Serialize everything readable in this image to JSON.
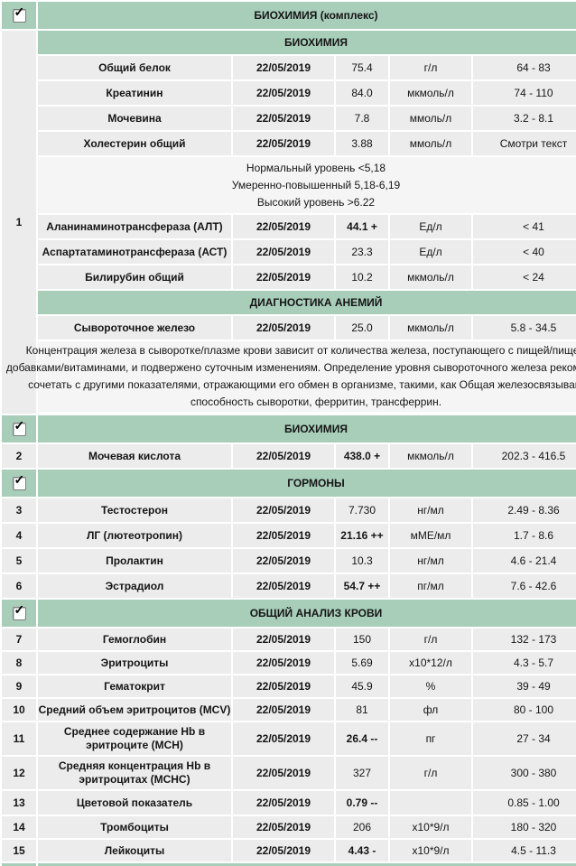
{
  "icons": {
    "check": "✓"
  },
  "colors": {
    "section_green": "#a8ceba",
    "row_gray": "#ececec",
    "block_gray": "#f5f5f5"
  },
  "date_column_value": "22/05/2019",
  "groups": [
    {
      "number": "1",
      "title": "БИОХИМИЯ (комплекс)",
      "checked": true,
      "subheader1": "БИОХИМИЯ",
      "subheader2": "ДИАГНОСТИКА АНЕМИЙ",
      "rows": [
        {
          "name": "Общий белок",
          "date": "22/05/2019",
          "value": "75.4",
          "units": "г/л",
          "range": "64 - 83"
        },
        {
          "name": "Креатинин",
          "date": "22/05/2019",
          "value": "84.0",
          "units": "мкмоль/л",
          "range": "74 - 110"
        },
        {
          "name": "Мочевина",
          "date": "22/05/2019",
          "value": "7.8",
          "units": "ммоль/л",
          "range": "3.2 - 8.1"
        },
        {
          "name": "Холестерин общий",
          "date": "22/05/2019",
          "value": "3.88",
          "units": "ммоль/л",
          "range": "Смотри текст"
        },
        {
          "name": "Аланинаминотрансфераза (АЛТ)",
          "date": "22/05/2019",
          "value": "44.1 +",
          "units": "Ед/л",
          "range": "< 41"
        },
        {
          "name": "Аспартатаминотрансфераза (АСТ)",
          "date": "22/05/2019",
          "value": "23.3",
          "units": "Ед/л",
          "range": "< 40"
        },
        {
          "name": "Билирубин общий",
          "date": "22/05/2019",
          "value": "10.2",
          "units": "мкмоль/л",
          "range": "< 24"
        },
        {
          "name": "Сывороточное железо",
          "date": "22/05/2019",
          "value": "25.0",
          "units": "мкмоль/л",
          "range": "5.8 - 34.5"
        }
      ],
      "cholesterol_note_lines": [
        "Нормальный уровень <5,18",
        "Умеренно-повышенный 5,18-6,19",
        "Высокий уровень >6.22"
      ],
      "iron_note_lines": [
        "Концентрация железа в сыворотке/плазме крови зависит от количества железа, поступающего с пищей/пищевыми",
        "добавками/витаминами, и подвержено суточным изменениям. Определение уровня сывороточного железа рекомендуется",
        "сочетать с другими показателями, отражающими его обмен в организме, такими, как Общая железосвязывающая",
        "способность сыворотки, ферритин, трансферрин."
      ]
    },
    {
      "title": "БИОХИМИЯ",
      "checked": true,
      "rows": [
        {
          "num": "2",
          "name": "Мочевая кислота",
          "date": "22/05/2019",
          "value": "438.0 +",
          "units": "мкмоль/л",
          "range": "202.3 - 416.5"
        }
      ]
    },
    {
      "title": "ГОРМОНЫ",
      "checked": true,
      "rows": [
        {
          "num": "3",
          "name": "Тестостерон",
          "date": "22/05/2019",
          "value": "7.730",
          "units": "нг/мл",
          "range": "2.49 - 8.36"
        },
        {
          "num": "4",
          "name": "ЛГ (лютеотропин)",
          "date": "22/05/2019",
          "value": "21.16 ++",
          "units": "мМЕ/мл",
          "range": "1.7 - 8.6"
        },
        {
          "num": "5",
          "name": "Пролактин",
          "date": "22/05/2019",
          "value": "10.3",
          "units": "нг/мл",
          "range": "4.6 - 21.4"
        },
        {
          "num": "6",
          "name": "Эстрадиол",
          "date": "22/05/2019",
          "value": "54.7 ++",
          "units": "пг/мл",
          "range": "7.6 - 42.6"
        }
      ]
    },
    {
      "title": "ОБЩИЙ АНАЛИЗ КРОВИ",
      "checked": true,
      "rows": [
        {
          "num": "7",
          "name": "Гемоглобин",
          "date": "22/05/2019",
          "value": "150",
          "units": "г/л",
          "range": "132 - 173"
        },
        {
          "num": "8",
          "name": "Эритроциты",
          "date": "22/05/2019",
          "value": "5.69",
          "units": "x10*12/л",
          "range": "4.3 - 5.7"
        },
        {
          "num": "9",
          "name": "Гематокрит",
          "date": "22/05/2019",
          "value": "45.9",
          "units": "%",
          "range": "39 - 49"
        },
        {
          "num": "10",
          "name": "Средний объем эритроцитов (MCV)",
          "date": "22/05/2019",
          "value": "81",
          "units": "фл",
          "range": "80 - 100"
        },
        {
          "num": "11",
          "name": "Среднее содержание Hb в эритроците (MCH)",
          "date": "22/05/2019",
          "value": "26.4 --",
          "units": "пг",
          "range": "27 - 34"
        },
        {
          "num": "12",
          "name": "Средняя концентрация Hb в эритроцитах (MCHC)",
          "date": "22/05/2019",
          "value": "327",
          "units": "г/л",
          "range": "300 - 380"
        },
        {
          "num": "13",
          "name": "Цветовой показатель",
          "date": "22/05/2019",
          "value": "0.79 --",
          "units": "",
          "range": "0.85 - 1.00"
        },
        {
          "num": "14",
          "name": "Тромбоциты",
          "date": "22/05/2019",
          "value": "206",
          "units": "х10*9/л",
          "range": "180 - 320"
        },
        {
          "num": "15",
          "name": "Лейкоциты",
          "date": "22/05/2019",
          "value": "4.43 -",
          "units": "х10*9/л",
          "range": "4.5 - 11.3"
        }
      ]
    },
    {
      "title": "",
      "checked": true
    }
  ]
}
